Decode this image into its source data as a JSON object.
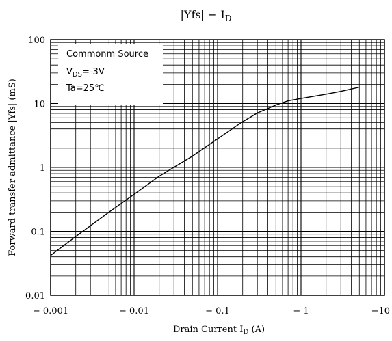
{
  "chart_data": {
    "type": "line",
    "title": "|Yfs| − I",
    "title_sub": "D",
    "xlabel": "Drain Current  I",
    "xlabel_sub": "D",
    "xlabel_unit": " (A)",
    "ylabel": "Forward transfer admittance  |Yfs|  (mS)",
    "x_scale": "log",
    "y_scale": "log",
    "xlim": [
      -0.001,
      -10
    ],
    "ylim": [
      0.01,
      100
    ],
    "grid": true,
    "x_ticks": [
      "− 0.001",
      "− 0.01",
      "− 0.1",
      "− 1",
      "−10"
    ],
    "y_ticks": [
      "100",
      "10",
      "1",
      "0.1",
      "0.01"
    ],
    "annotation": {
      "line1": "Commonm Source",
      "line2_prefix": "V",
      "line2_sub": "DS",
      "line2_suffix": "=-3V",
      "line3": "Ta=25℃"
    },
    "series": [
      {
        "x": [
          -0.001,
          -0.002,
          -0.005,
          -0.01,
          -0.02,
          -0.05,
          -0.1,
          -0.2,
          -0.3,
          -0.5,
          -0.7,
          -1,
          -2,
          -3,
          -5
        ],
        "y": [
          0.042,
          0.083,
          0.2,
          0.38,
          0.73,
          1.5,
          2.8,
          5.2,
          7.1,
          9.5,
          11.0,
          12.0,
          14.0,
          15.5,
          18.0
        ]
      }
    ]
  }
}
